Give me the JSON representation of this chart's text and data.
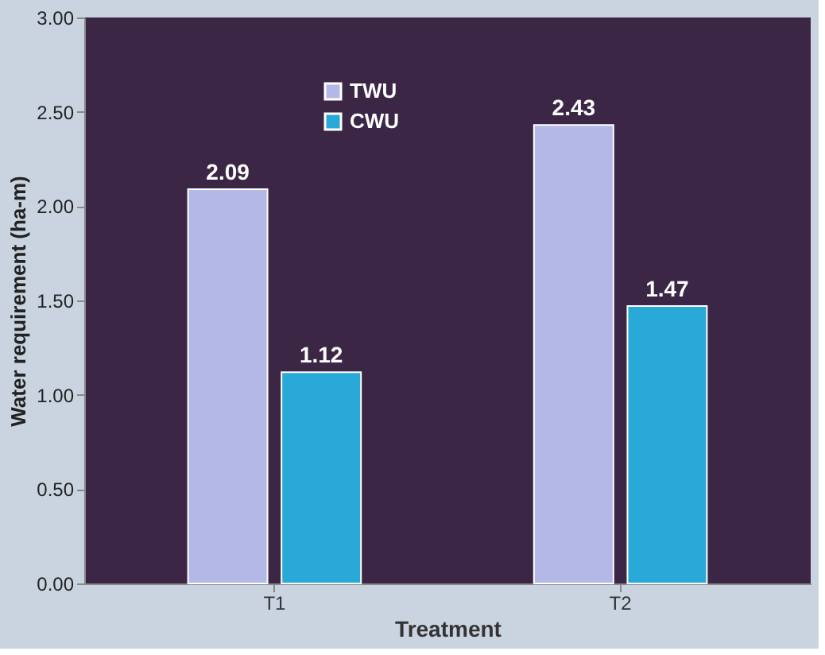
{
  "chart_data": {
    "type": "bar",
    "xlabel": "Treatment",
    "ylabel": "Water requirement (ha-m)",
    "categories": [
      "T1",
      "T2"
    ],
    "series": [
      {
        "name": "TWU",
        "color": "#b4b8e6",
        "values": [
          2.09,
          2.43
        ]
      },
      {
        "name": "CWU",
        "color": "#29a9d8",
        "values": [
          1.12,
          1.47
        ]
      }
    ],
    "ylim": [
      0,
      3
    ],
    "yticks": [
      {
        "value": 0,
        "label": "0.00"
      },
      {
        "value": 0.5,
        "label": "0.50"
      },
      {
        "value": 1,
        "label": "1.00"
      },
      {
        "value": 1.5,
        "label": "1.50"
      },
      {
        "value": 2,
        "label": "2.00"
      },
      {
        "value": 2.5,
        "label": "2.50"
      },
      {
        "value": 3,
        "label": "3.00"
      }
    ],
    "data_labels": true,
    "legend": "top",
    "grid": false
  }
}
